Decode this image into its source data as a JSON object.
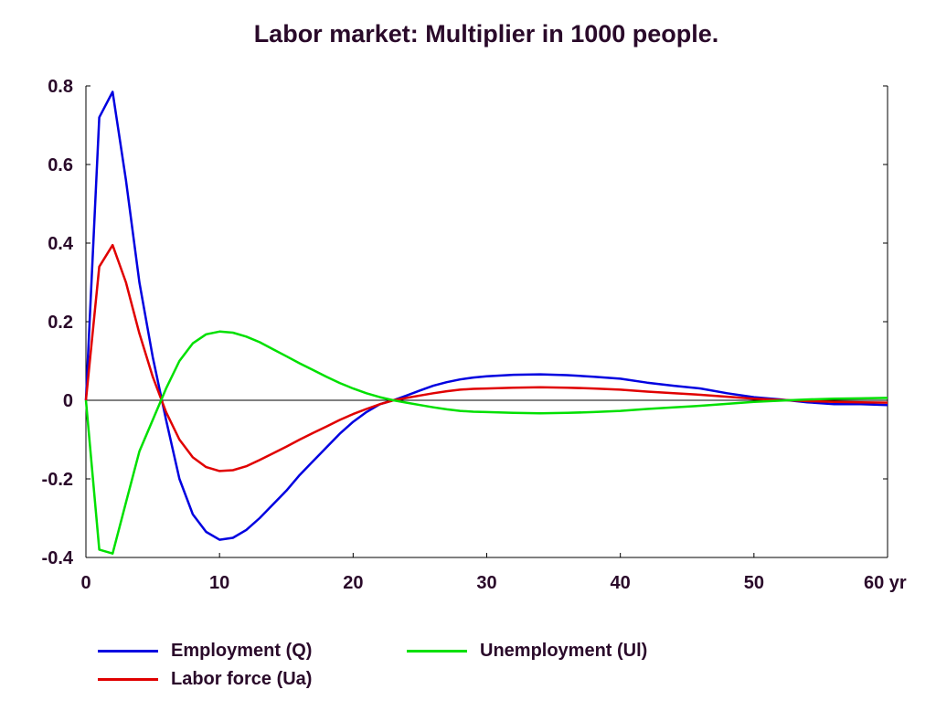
{
  "chart_data": {
    "type": "line",
    "title": "Labor market: Multiplier in 1000 people.",
    "xlabel": "",
    "ylabel": "",
    "x_unit_suffix": "yr",
    "xlim": [
      0,
      60
    ],
    "ylim": [
      -0.4,
      0.8
    ],
    "x_ticks": [
      0,
      10,
      20,
      30,
      40,
      50,
      60
    ],
    "x_tick_labels": [
      "0",
      "10",
      "20",
      "30",
      "40",
      "50",
      "60 yr"
    ],
    "y_ticks": [
      -0.4,
      -0.2,
      0,
      0.2,
      0.4,
      0.6,
      0.8
    ],
    "y_tick_labels": [
      "-0.4",
      "-0.2",
      "0",
      "0.2",
      "0.4",
      "0.6",
      "0.8"
    ],
    "zero_line": true,
    "grid": false,
    "legend_position": "bottom",
    "x": [
      0,
      1,
      2,
      3,
      4,
      5,
      6,
      7,
      8,
      9,
      10,
      11,
      12,
      13,
      14,
      15,
      16,
      17,
      18,
      19,
      20,
      21,
      22,
      23,
      24,
      25,
      26,
      27,
      28,
      29,
      30,
      32,
      34,
      36,
      38,
      40,
      42,
      44,
      46,
      48,
      50,
      52,
      54,
      56,
      58,
      60
    ],
    "series": [
      {
        "name": "Employment (Q)",
        "color": "#0000e0",
        "values": [
          0,
          0.72,
          0.785,
          0.56,
          0.3,
          0.11,
          -0.05,
          -0.2,
          -0.29,
          -0.335,
          -0.355,
          -0.35,
          -0.33,
          -0.3,
          -0.265,
          -0.23,
          -0.19,
          -0.155,
          -0.12,
          -0.085,
          -0.055,
          -0.03,
          -0.01,
          0.0,
          0.012,
          0.025,
          0.037,
          0.046,
          0.053,
          0.058,
          0.061,
          0.065,
          0.066,
          0.064,
          0.06,
          0.055,
          0.045,
          0.037,
          0.03,
          0.018,
          0.008,
          0.002,
          -0.005,
          -0.01,
          -0.01,
          -0.012
        ]
      },
      {
        "name": "Labor force (Ua)",
        "color": "#e00000",
        "values": [
          0,
          0.34,
          0.395,
          0.3,
          0.17,
          0.06,
          -0.03,
          -0.1,
          -0.145,
          -0.17,
          -0.18,
          -0.178,
          -0.168,
          -0.152,
          -0.135,
          -0.118,
          -0.1,
          -0.083,
          -0.067,
          -0.05,
          -0.035,
          -0.022,
          -0.01,
          0.0,
          0.006,
          0.012,
          0.018,
          0.023,
          0.027,
          0.029,
          0.03,
          0.032,
          0.033,
          0.032,
          0.03,
          0.027,
          0.022,
          0.018,
          0.014,
          0.009,
          0.004,
          0.001,
          -0.002,
          -0.004,
          -0.005,
          -0.006
        ]
      },
      {
        "name": "Unemployment (Ul)",
        "color": "#00e000",
        "values": [
          0,
          -0.38,
          -0.39,
          -0.26,
          -0.13,
          -0.05,
          0.03,
          0.1,
          0.145,
          0.168,
          0.175,
          0.172,
          0.162,
          0.148,
          0.13,
          0.112,
          0.094,
          0.077,
          0.06,
          0.044,
          0.03,
          0.018,
          0.008,
          0.0,
          -0.006,
          -0.012,
          -0.018,
          -0.023,
          -0.027,
          -0.029,
          -0.03,
          -0.032,
          -0.033,
          -0.032,
          -0.03,
          -0.027,
          -0.022,
          -0.018,
          -0.014,
          -0.009,
          -0.004,
          -0.001,
          0.002,
          0.004,
          0.005,
          0.006
        ]
      }
    ]
  }
}
